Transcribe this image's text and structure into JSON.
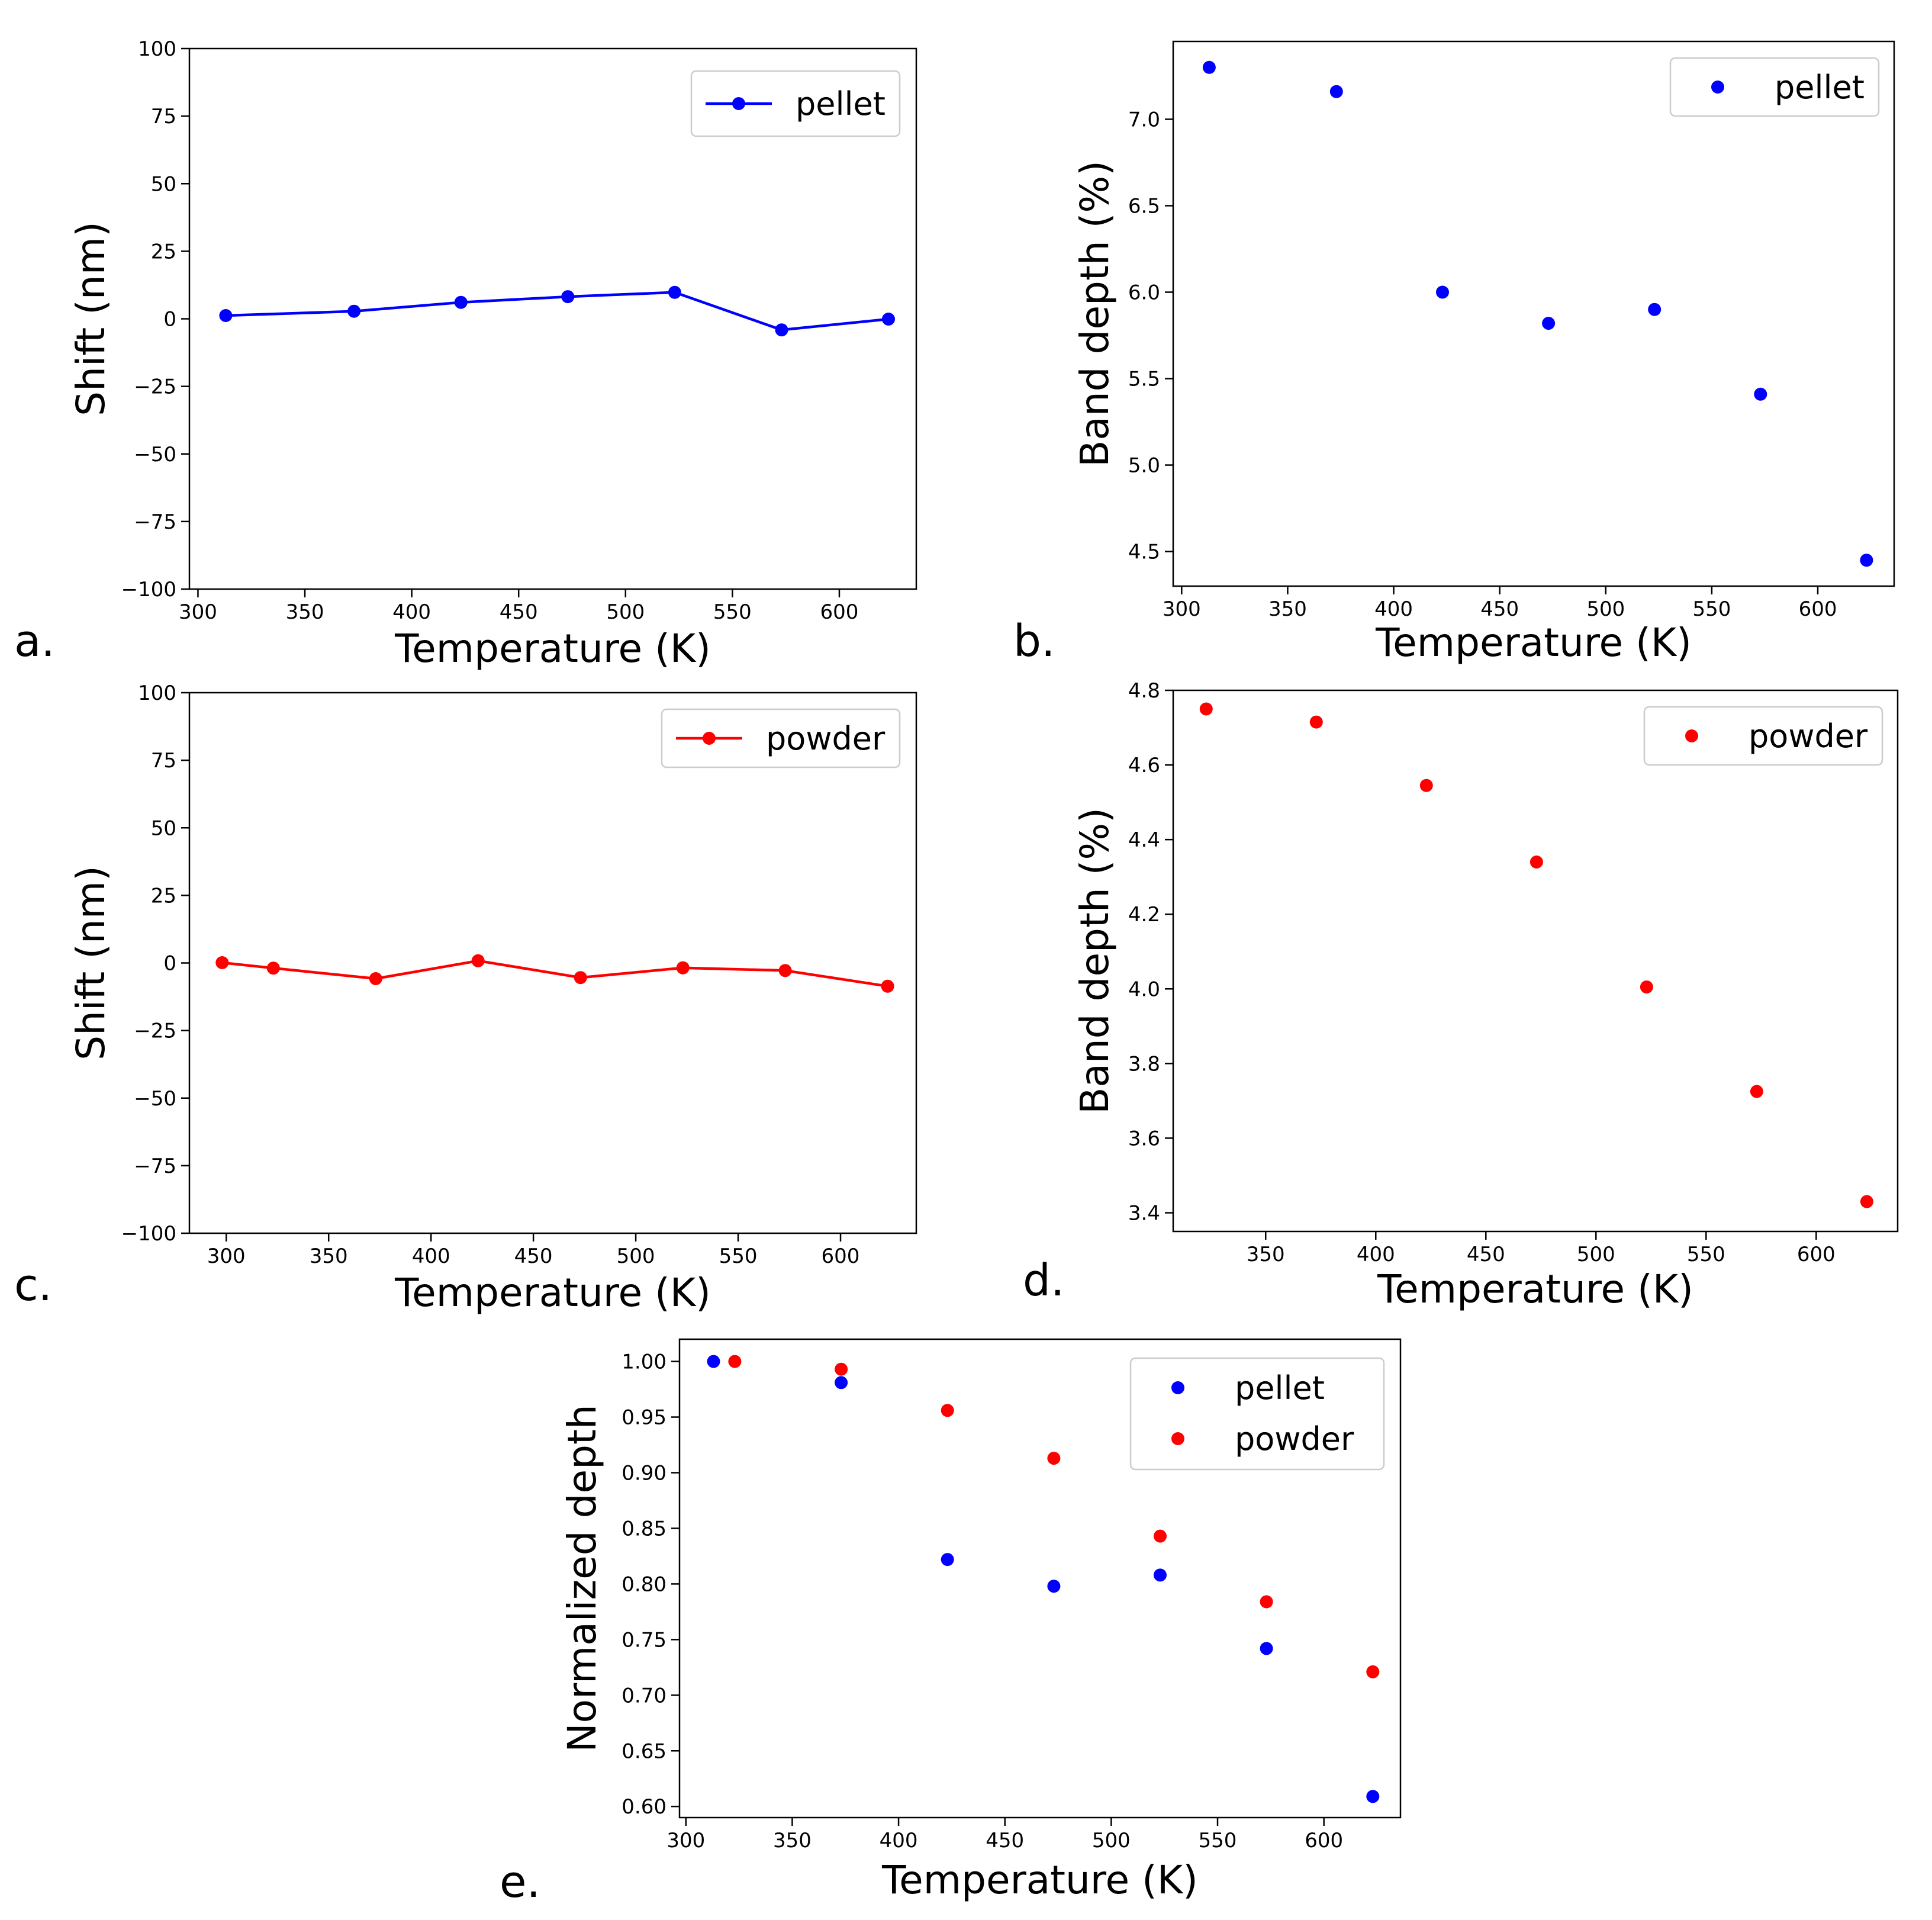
{
  "figure": {
    "panel_letters": [
      "a.",
      "b.",
      "c.",
      "d.",
      "e."
    ]
  },
  "colors": {
    "pellet": "#0000ff",
    "powder": "#ff0000"
  },
  "chart_data": [
    {
      "id": "a",
      "type": "line",
      "title": "",
      "xlabel": "Temperature (K)",
      "ylabel": "Shift (nm)",
      "xlim": [
        296,
        636
      ],
      "ylim": [
        -100,
        100
      ],
      "xticks": [
        300,
        350,
        400,
        450,
        500,
        550,
        600
      ],
      "xtick_labels": [
        "300",
        "350",
        "400",
        "450",
        "500",
        "550",
        "600"
      ],
      "yticks": [
        100,
        75,
        50,
        25,
        0,
        -25,
        -50,
        -75,
        -100
      ],
      "ytick_labels": [
        "100",
        "75",
        "50",
        "25",
        "0",
        "−25",
        "−50",
        "−75",
        "−100"
      ],
      "legend_position": "top-right",
      "grid": false,
      "series": [
        {
          "name": "pellet",
          "color": "#0000ff",
          "marker": "line",
          "x": [
            313,
            373,
            423,
            473,
            523,
            573,
            623
          ],
          "y": [
            1.2,
            2.8,
            6.1,
            8.2,
            9.8,
            -4.1,
            -0.1
          ]
        }
      ]
    },
    {
      "id": "b",
      "type": "scatter",
      "title": "",
      "xlabel": "Temperature (K)",
      "ylabel": "Band depth (%)",
      "xlim": [
        296,
        636
      ],
      "ylim": [
        4.3,
        7.45
      ],
      "xticks": [
        300,
        350,
        400,
        450,
        500,
        550,
        600
      ],
      "xtick_labels": [
        "300",
        "350",
        "400",
        "450",
        "500",
        "550",
        "600"
      ],
      "yticks": [
        7.0,
        6.5,
        6.0,
        5.5,
        5.0,
        4.5
      ],
      "ytick_labels": [
        "7.0",
        "6.5",
        "6.0",
        "5.5",
        "5.0",
        "4.5"
      ],
      "legend_position": "top-right",
      "grid": false,
      "series": [
        {
          "name": "pellet",
          "color": "#0000ff",
          "marker": "dot",
          "x": [
            313,
            373,
            423,
            473,
            523,
            573,
            623
          ],
          "y": [
            7.3,
            7.16,
            6.0,
            5.82,
            5.9,
            5.41,
            4.45
          ]
        }
      ]
    },
    {
      "id": "c",
      "type": "line",
      "title": "",
      "xlabel": "Temperature (K)",
      "ylabel": "Shift (nm)",
      "xlim": [
        282,
        637
      ],
      "ylim": [
        -100,
        100
      ],
      "xticks": [
        300,
        350,
        400,
        450,
        500,
        550,
        600
      ],
      "xtick_labels": [
        "300",
        "350",
        "400",
        "450",
        "500",
        "550",
        "600"
      ],
      "yticks": [
        100,
        75,
        50,
        25,
        0,
        -25,
        -50,
        -75,
        -100
      ],
      "ytick_labels": [
        "100",
        "75",
        "50",
        "25",
        "0",
        "−25",
        "−50",
        "−75",
        "−100"
      ],
      "legend_position": "top-right",
      "grid": false,
      "series": [
        {
          "name": "powder",
          "color": "#ff0000",
          "marker": "line",
          "x": [
            298,
            323,
            373,
            423,
            473,
            523,
            573,
            623
          ],
          "y": [
            0.1,
            -1.9,
            -5.8,
            0.8,
            -5.4,
            -1.8,
            -2.8,
            -8.6
          ]
        }
      ]
    },
    {
      "id": "d",
      "type": "scatter",
      "title": "",
      "xlabel": "Temperature (K)",
      "ylabel": "Band depth (%)",
      "xlim": [
        308,
        637
      ],
      "ylim": [
        3.35,
        4.8
      ],
      "xticks": [
        350,
        400,
        450,
        500,
        550,
        600
      ],
      "xtick_labels": [
        "350",
        "400",
        "450",
        "500",
        "550",
        "600"
      ],
      "yticks": [
        4.8,
        4.6,
        4.4,
        4.2,
        4.0,
        3.8,
        3.6,
        3.4
      ],
      "ytick_labels": [
        "4.8",
        "4.6",
        "4.4",
        "4.2",
        "4.0",
        "3.8",
        "3.6",
        "3.4"
      ],
      "legend_position": "top-right",
      "grid": false,
      "series": [
        {
          "name": "powder",
          "color": "#ff0000",
          "marker": "dot",
          "x": [
            323,
            373,
            423,
            473,
            523,
            573,
            623
          ],
          "y": [
            4.75,
            4.715,
            4.545,
            4.34,
            4.005,
            3.725,
            3.43
          ]
        }
      ]
    },
    {
      "id": "e",
      "type": "scatter",
      "title": "",
      "xlabel": "Temperature (K)",
      "ylabel": "Normalized depth",
      "xlim": [
        297,
        636
      ],
      "ylim": [
        0.59,
        1.02
      ],
      "xticks": [
        300,
        350,
        400,
        450,
        500,
        550,
        600
      ],
      "xtick_labels": [
        "300",
        "350",
        "400",
        "450",
        "500",
        "550",
        "600"
      ],
      "yticks": [
        1.0,
        0.95,
        0.9,
        0.85,
        0.8,
        0.75,
        0.7,
        0.65,
        0.6
      ],
      "ytick_labels": [
        "1.00",
        "0.95",
        "0.90",
        "0.85",
        "0.80",
        "0.75",
        "0.70",
        "0.65",
        "0.60"
      ],
      "legend_position": "top-right",
      "grid": false,
      "series": [
        {
          "name": "pellet",
          "color": "#0000ff",
          "marker": "dot",
          "x": [
            313,
            373,
            423,
            473,
            523,
            573,
            623
          ],
          "y": [
            1.0,
            0.981,
            0.822,
            0.798,
            0.808,
            0.742,
            0.609
          ]
        },
        {
          "name": "powder",
          "color": "#ff0000",
          "marker": "dot",
          "x": [
            323,
            373,
            423,
            473,
            523,
            573,
            623
          ],
          "y": [
            1.0,
            0.993,
            0.956,
            0.913,
            0.843,
            0.784,
            0.721
          ]
        }
      ]
    }
  ]
}
